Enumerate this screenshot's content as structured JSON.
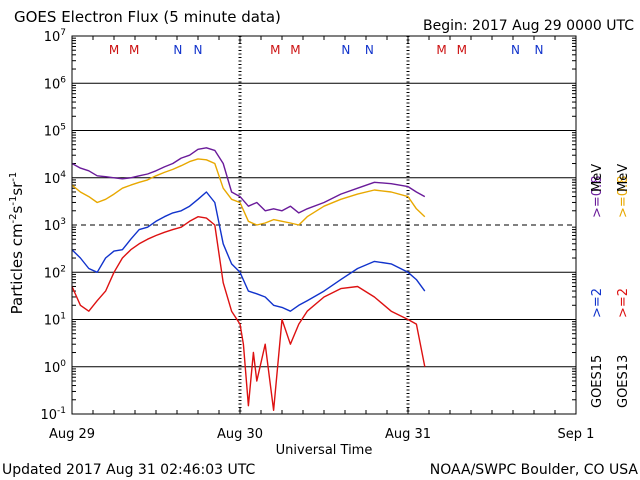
{
  "header": {
    "title": "GOES Electron Flux (5 minute data)",
    "begin": "Begin: 2017 Aug 29 0000 UTC"
  },
  "footer": {
    "updated": "Updated 2017 Aug 31 02:46:03 UTC",
    "credit": "NOAA/SWPC Boulder, CO USA"
  },
  "legend": {
    "placement": "right",
    "columns": [
      {
        "satellite": "GOES15",
        "label": ">=2",
        "color": "#1133cc"
      },
      {
        "satellite": "GOES13",
        "label": ">=2",
        "color": "#dd1111"
      },
      {
        "satellite": "",
        "label": ">=0.8",
        "color": "#6a1b9a"
      },
      {
        "satellite": "",
        "label": ">=0.8",
        "color": "#e8a800"
      }
    ],
    "unit": "MeV"
  },
  "markers": {
    "row": [
      "M",
      "M",
      "N",
      "N",
      "M",
      "M",
      "N",
      "N",
      "M",
      "M",
      "N",
      "N"
    ],
    "day": [
      0.25,
      0.37,
      0.63,
      0.75,
      1.21,
      1.33,
      1.63,
      1.77,
      2.2,
      2.32,
      2.64,
      2.78
    ],
    "colors": {
      "M": "#cc1111",
      "N": "#1133cc"
    }
  },
  "chart_data": {
    "type": "line",
    "title": "GOES Electron Flux (5 minute data)",
    "xlabel": "Universal Time",
    "ylabel": "Particles cm-2s-1sr-1",
    "x_ticks": [
      "Aug 29",
      "Aug 30",
      "Aug 31",
      "Sep 1"
    ],
    "xlim_days": [
      0,
      3
    ],
    "y_scale": "log",
    "ylim": [
      0.1,
      10000000
    ],
    "y_ticks": [
      {
        "base": "10",
        "exp": "-1"
      },
      {
        "base": "10",
        "exp": "0"
      },
      {
        "base": "10",
        "exp": "1"
      },
      {
        "base": "10",
        "exp": "2"
      },
      {
        "base": "10",
        "exp": "3"
      },
      {
        "base": "10",
        "exp": "4"
      },
      {
        "base": "10",
        "exp": "5"
      },
      {
        "base": "10",
        "exp": "6"
      },
      {
        "base": "10",
        "exp": "7"
      }
    ],
    "grid": true,
    "threshold": 1000,
    "series": [
      {
        "name": "GOES15 >=0.8 MeV",
        "color": "#6a1b9a",
        "x": [
          0,
          0.05,
          0.1,
          0.15,
          0.2,
          0.25,
          0.3,
          0.35,
          0.4,
          0.45,
          0.5,
          0.55,
          0.6,
          0.65,
          0.7,
          0.75,
          0.8,
          0.85,
          0.9,
          0.95,
          1.0,
          1.05,
          1.1,
          1.15,
          1.2,
          1.25,
          1.3,
          1.35,
          1.4,
          1.5,
          1.6,
          1.7,
          1.8,
          1.9,
          2.0,
          2.05,
          2.1
        ],
        "y": [
          20000,
          16000,
          14000,
          11000,
          10500,
          10000,
          9500,
          10000,
          11000,
          12000,
          14000,
          17000,
          20000,
          26000,
          30000,
          40000,
          43000,
          38000,
          20000,
          5000,
          4000,
          2500,
          3000,
          2000,
          2200,
          2000,
          2500,
          1800,
          2200,
          3000,
          4500,
          6000,
          8000,
          7500,
          6500,
          5000,
          4000
        ]
      },
      {
        "name": "GOES13 >=0.8 MeV",
        "color": "#e8a800",
        "x": [
          0,
          0.05,
          0.1,
          0.15,
          0.2,
          0.25,
          0.3,
          0.35,
          0.4,
          0.45,
          0.5,
          0.55,
          0.6,
          0.65,
          0.7,
          0.75,
          0.8,
          0.85,
          0.9,
          0.95,
          1.0,
          1.05,
          1.1,
          1.15,
          1.2,
          1.25,
          1.3,
          1.35,
          1.4,
          1.5,
          1.6,
          1.7,
          1.8,
          1.9,
          2.0,
          2.05,
          2.1
        ],
        "y": [
          7000,
          5000,
          4000,
          3000,
          3500,
          4500,
          6000,
          7000,
          8000,
          9000,
          11000,
          13000,
          15000,
          18000,
          22000,
          25000,
          24000,
          20000,
          6000,
          3500,
          3000,
          1200,
          1000,
          1100,
          1300,
          1200,
          1100,
          1000,
          1500,
          2500,
          3500,
          4500,
          5500,
          5000,
          4000,
          2200,
          1500
        ]
      },
      {
        "name": "GOES15 >=2 MeV",
        "color": "#1133cc",
        "x": [
          0,
          0.05,
          0.1,
          0.15,
          0.2,
          0.25,
          0.3,
          0.35,
          0.4,
          0.45,
          0.5,
          0.55,
          0.6,
          0.65,
          0.7,
          0.75,
          0.8,
          0.85,
          0.9,
          0.95,
          1.0,
          1.05,
          1.1,
          1.15,
          1.2,
          1.25,
          1.3,
          1.35,
          1.4,
          1.5,
          1.6,
          1.7,
          1.8,
          1.9,
          2.0,
          2.05,
          2.1
        ],
        "y": [
          300,
          200,
          120,
          100,
          200,
          280,
          300,
          500,
          800,
          900,
          1200,
          1500,
          1800,
          2000,
          2500,
          3500,
          5000,
          3000,
          400,
          150,
          100,
          40,
          35,
          30,
          20,
          18,
          15,
          20,
          25,
          40,
          70,
          120,
          170,
          150,
          100,
          70,
          40
        ]
      },
      {
        "name": "GOES13 >=2 MeV",
        "color": "#dd1111",
        "x": [
          0,
          0.05,
          0.1,
          0.15,
          0.2,
          0.25,
          0.3,
          0.35,
          0.4,
          0.45,
          0.5,
          0.55,
          0.6,
          0.65,
          0.7,
          0.75,
          0.8,
          0.85,
          0.9,
          0.95,
          1.0,
          1.02,
          1.05,
          1.08,
          1.1,
          1.15,
          1.2,
          1.25,
          1.3,
          1.35,
          1.4,
          1.5,
          1.6,
          1.7,
          1.8,
          1.9,
          2.0,
          2.05,
          2.1
        ],
        "y": [
          50,
          20,
          15,
          25,
          40,
          100,
          200,
          300,
          400,
          500,
          600,
          700,
          800,
          900,
          1200,
          1500,
          1400,
          1000,
          60,
          15,
          8,
          3,
          0.15,
          2,
          0.5,
          3,
          0.12,
          10,
          3,
          8,
          15,
          30,
          45,
          50,
          30,
          15,
          10,
          8,
          1
        ]
      }
    ]
  }
}
